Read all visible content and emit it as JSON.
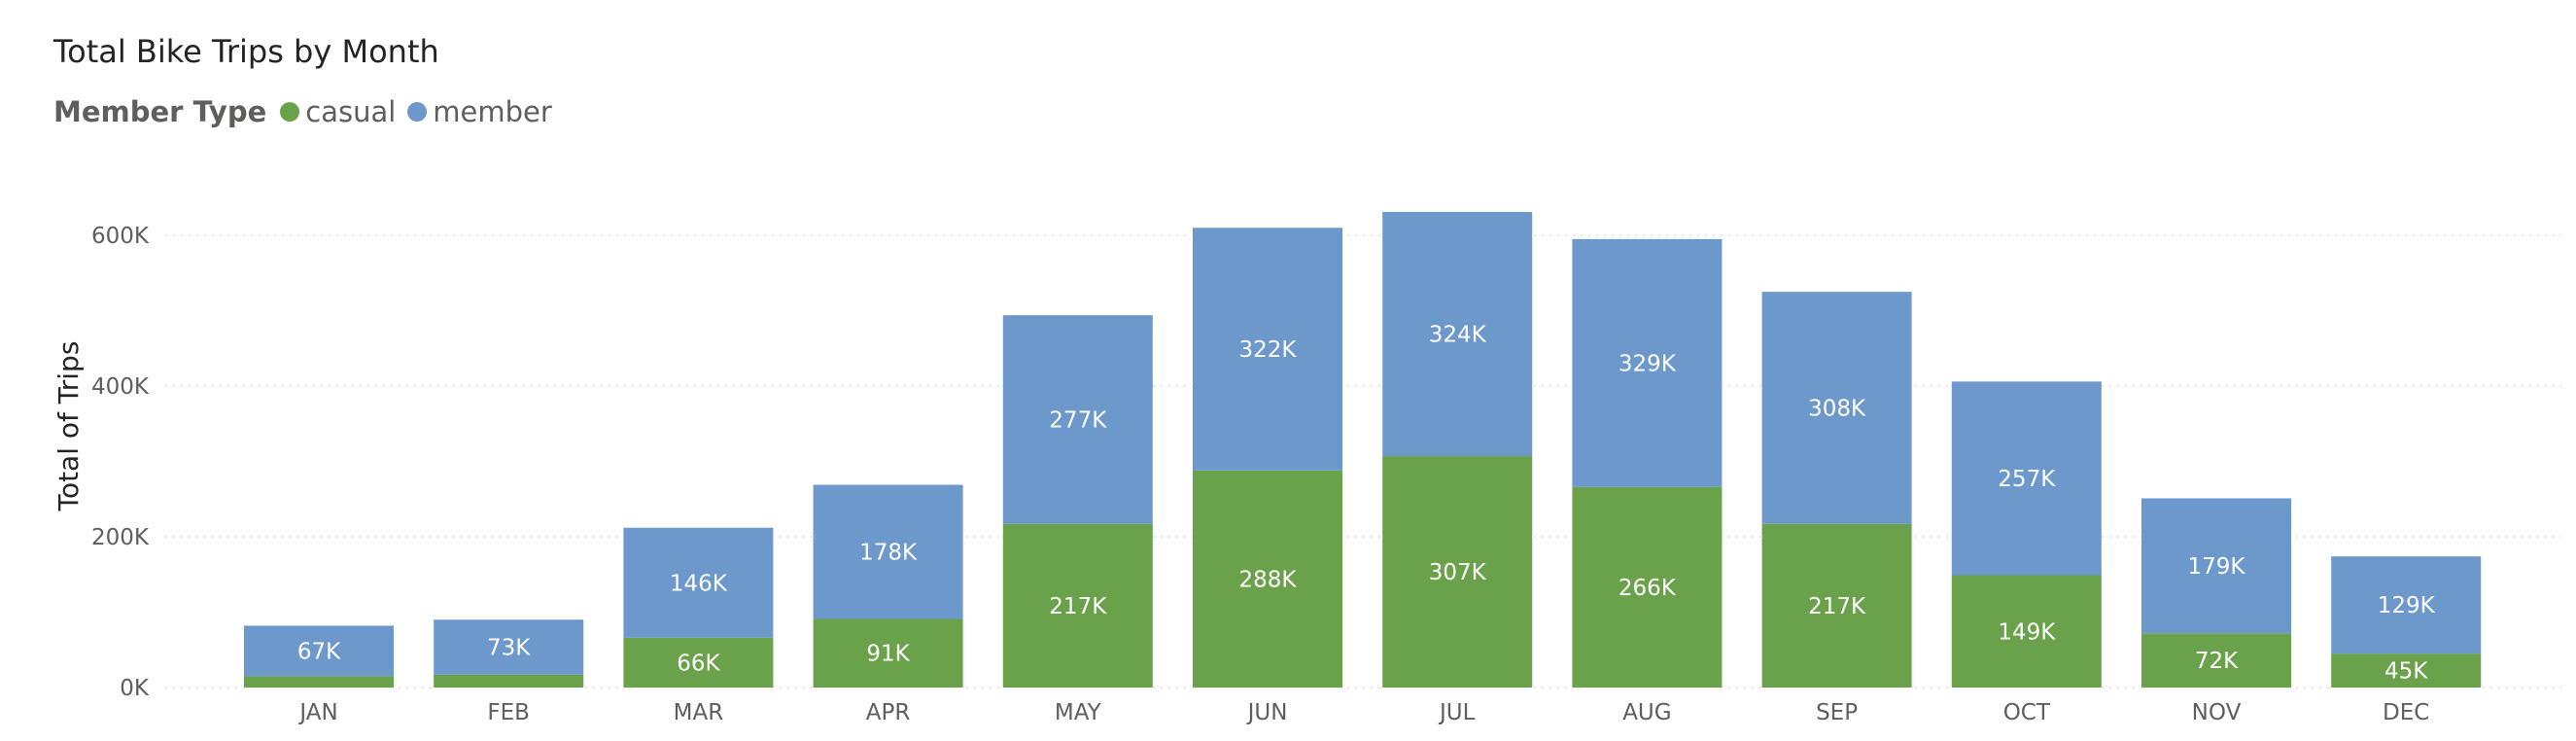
{
  "colors": {
    "casual": "#6aa24c",
    "member": "#6c98cc"
  },
  "chart_data": {
    "type": "bar",
    "stacked": true,
    "title": "Total Bike Trips by Month",
    "legend_title": "Member Type",
    "legend_placement": "top-left",
    "xlabel": "",
    "ylabel": "Total of Trips",
    "ylim": [
      0,
      640000
    ],
    "yticks": [
      0,
      200000,
      400000,
      600000
    ],
    "ytick_labels": [
      "0K",
      "200K",
      "400K",
      "600K"
    ],
    "grid": true,
    "categories": [
      "JAN",
      "FEB",
      "MAR",
      "APR",
      "MAY",
      "JUN",
      "JUL",
      "AUG",
      "SEP",
      "OCT",
      "NOV",
      "DEC"
    ],
    "series": [
      {
        "name": "casual",
        "values": [
          15000,
          17000,
          66000,
          91000,
          217000,
          288000,
          307000,
          266000,
          217000,
          149000,
          72000,
          45000
        ],
        "labels": [
          "",
          "",
          "66K",
          "91K",
          "217K",
          "288K",
          "307K",
          "266K",
          "217K",
          "149K",
          "72K",
          "45K"
        ]
      },
      {
        "name": "member",
        "values": [
          67000,
          73000,
          146000,
          178000,
          277000,
          322000,
          324000,
          329000,
          308000,
          257000,
          179000,
          129000
        ],
        "labels": [
          "67K",
          "73K",
          "146K",
          "178K",
          "277K",
          "322K",
          "324K",
          "329K",
          "308K",
          "257K",
          "179K",
          "129K"
        ]
      }
    ]
  }
}
